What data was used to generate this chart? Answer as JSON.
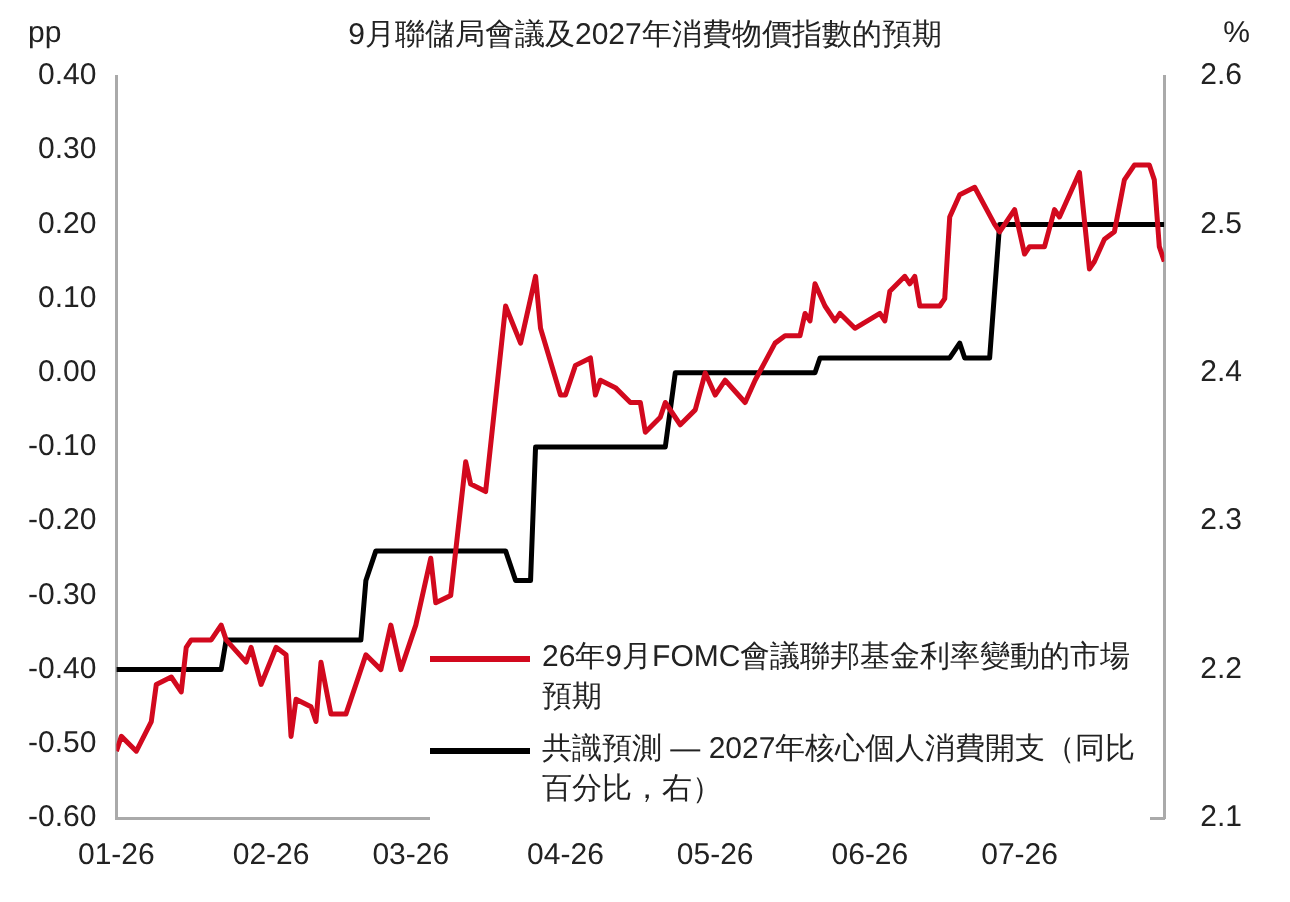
{
  "chart_data": {
    "type": "line",
    "title": "9月聯儲局會議及2027年消費物價指數的預期",
    "ylabel": "pp",
    "y2label": "%",
    "xlim": [
      "2026-01-01",
      "2026-07-30"
    ],
    "xticks": [
      {
        "value": "2026-01-01",
        "label": "01-26"
      },
      {
        "value": "2026-02-01",
        "label": "02-26"
      },
      {
        "value": "2026-03-01",
        "label": "03-26"
      },
      {
        "value": "2026-04-01",
        "label": "04-26"
      },
      {
        "value": "2026-05-01",
        "label": "05-26"
      },
      {
        "value": "2026-06-01",
        "label": "06-26"
      },
      {
        "value": "2026-07-01",
        "label": "07-26"
      }
    ],
    "ylim": [
      -0.6,
      0.4
    ],
    "yticks": [
      {
        "value": -0.6,
        "label": "-0.60"
      },
      {
        "value": -0.5,
        "label": "-0.50"
      },
      {
        "value": -0.4,
        "label": "-0.40"
      },
      {
        "value": -0.3,
        "label": "-0.30"
      },
      {
        "value": -0.2,
        "label": "-0.20"
      },
      {
        "value": -0.1,
        "label": "-0.10"
      },
      {
        "value": 0,
        "label": "0.00"
      },
      {
        "value": 0.1,
        "label": "0.10"
      },
      {
        "value": 0.2,
        "label": "0.20"
      },
      {
        "value": 0.3,
        "label": "0.30"
      },
      {
        "value": 0.4,
        "label": "0.40"
      }
    ],
    "y2lim": [
      2.1,
      2.6
    ],
    "y2ticks": [
      2.1,
      2.2,
      2.3,
      2.4,
      2.5,
      2.6
    ],
    "grid": false,
    "legend": "bottom right",
    "marker": "none",
    "line_style": "solid",
    "series": [
      {
        "name": "26年9月FOMC會議聯邦基金利率變動的市場預期",
        "color": "#d2091e",
        "x": [
          "2026-01-01",
          "2026-01-02",
          "2026-01-05",
          "2026-01-08",
          "2026-01-09",
          "2026-01-12",
          "2026-01-14",
          "2026-01-15",
          "2026-01-16",
          "2026-01-20",
          "2026-01-22",
          "2026-01-23",
          "2026-01-27",
          "2026-01-28",
          "2026-01-30",
          "2026-02-02",
          "2026-02-04",
          "2026-02-05",
          "2026-02-06",
          "2026-02-09",
          "2026-02-10",
          "2026-02-11",
          "2026-02-13",
          "2026-02-16",
          "2026-02-18",
          "2026-02-20",
          "2026-02-23",
          "2026-02-25",
          "2026-02-27",
          "2026-03-02",
          "2026-03-05",
          "2026-03-06",
          "2026-03-09",
          "2026-03-12",
          "2026-03-13",
          "2026-03-16",
          "2026-03-20",
          "2026-03-23",
          "2026-03-24",
          "2026-03-26",
          "2026-03-27",
          "2026-03-31",
          "2026-04-01",
          "2026-04-03",
          "2026-04-06",
          "2026-04-07",
          "2026-04-08",
          "2026-04-11",
          "2026-04-14",
          "2026-04-16",
          "2026-04-17",
          "2026-04-20",
          "2026-04-21",
          "2026-04-24",
          "2026-04-27",
          "2026-04-29",
          "2026-05-01",
          "2026-05-03",
          "2026-05-07",
          "2026-05-09",
          "2026-05-13",
          "2026-05-15",
          "2026-05-18",
          "2026-05-19",
          "2026-05-20",
          "2026-05-21",
          "2026-05-23",
          "2026-05-25",
          "2026-05-26",
          "2026-05-29",
          "2026-06-03",
          "2026-06-04",
          "2026-06-05",
          "2026-06-08",
          "2026-06-09",
          "2026-06-10",
          "2026-06-11",
          "2026-06-15",
          "2026-06-16",
          "2026-06-17",
          "2026-06-19",
          "2026-06-22",
          "2026-06-26",
          "2026-06-27",
          "2026-06-30",
          "2026-07-02",
          "2026-07-03",
          "2026-07-06",
          "2026-07-08",
          "2026-07-09",
          "2026-07-13",
          "2026-07-15",
          "2026-07-16",
          "2026-07-18",
          "2026-07-20",
          "2026-07-22",
          "2026-07-24",
          "2026-07-27",
          "2026-07-28",
          "2026-07-29",
          "2026-07-30"
        ],
        "values": [
          -0.51,
          -0.49,
          -0.51,
          -0.47,
          -0.42,
          -0.41,
          -0.43,
          -0.37,
          -0.36,
          -0.36,
          -0.34,
          -0.36,
          -0.39,
          -0.37,
          -0.42,
          -0.37,
          -0.38,
          -0.49,
          -0.44,
          -0.45,
          -0.47,
          -0.39,
          -0.46,
          -0.46,
          -0.42,
          -0.38,
          -0.4,
          -0.34,
          -0.4,
          -0.34,
          -0.25,
          -0.31,
          -0.3,
          -0.12,
          -0.15,
          -0.16,
          0.09,
          0.04,
          0.07,
          0.13,
          0.06,
          -0.03,
          -0.03,
          0.01,
          0.02,
          -0.03,
          -0.01,
          -0.02,
          -0.04,
          -0.04,
          -0.08,
          -0.06,
          -0.04,
          -0.07,
          -0.05,
          0,
          -0.03,
          -0.01,
          -0.04,
          -0.01,
          0.04,
          0.05,
          0.05,
          0.08,
          0.07,
          0.12,
          0.09,
          0.07,
          0.08,
          0.06,
          0.08,
          0.07,
          0.11,
          0.13,
          0.12,
          0.13,
          0.09,
          0.09,
          0.1,
          0.21,
          0.24,
          0.25,
          0.2,
          0.19,
          0.22,
          0.16,
          0.17,
          0.17,
          0.22,
          0.21,
          0.27,
          0.14,
          0.15,
          0.18,
          0.19,
          0.26,
          0.28,
          0.28,
          0.26,
          0.17,
          0.15
        ]
      },
      {
        "name": "共識預測 — 2027年核心個人消費開支（同比百分比，右）",
        "color": "#000000",
        "axis": "y2",
        "x": [
          "2026-01-01",
          "2026-01-22",
          "2026-01-23",
          "2026-02-19",
          "2026-02-20",
          "2026-02-22",
          "2026-03-20",
          "2026-03-22",
          "2026-03-25",
          "2026-03-26",
          "2026-04-21",
          "2026-04-23",
          "2026-05-21",
          "2026-05-22",
          "2026-06-17",
          "2026-06-19",
          "2026-06-20",
          "2026-06-25",
          "2026-06-27",
          "2026-07-30"
        ],
        "values": [
          2.2,
          2.2,
          2.22,
          2.22,
          2.26,
          2.28,
          2.28,
          2.26,
          2.26,
          2.35,
          2.35,
          2.4,
          2.4,
          2.41,
          2.41,
          2.42,
          2.41,
          2.41,
          2.5,
          2.5
        ]
      }
    ]
  }
}
